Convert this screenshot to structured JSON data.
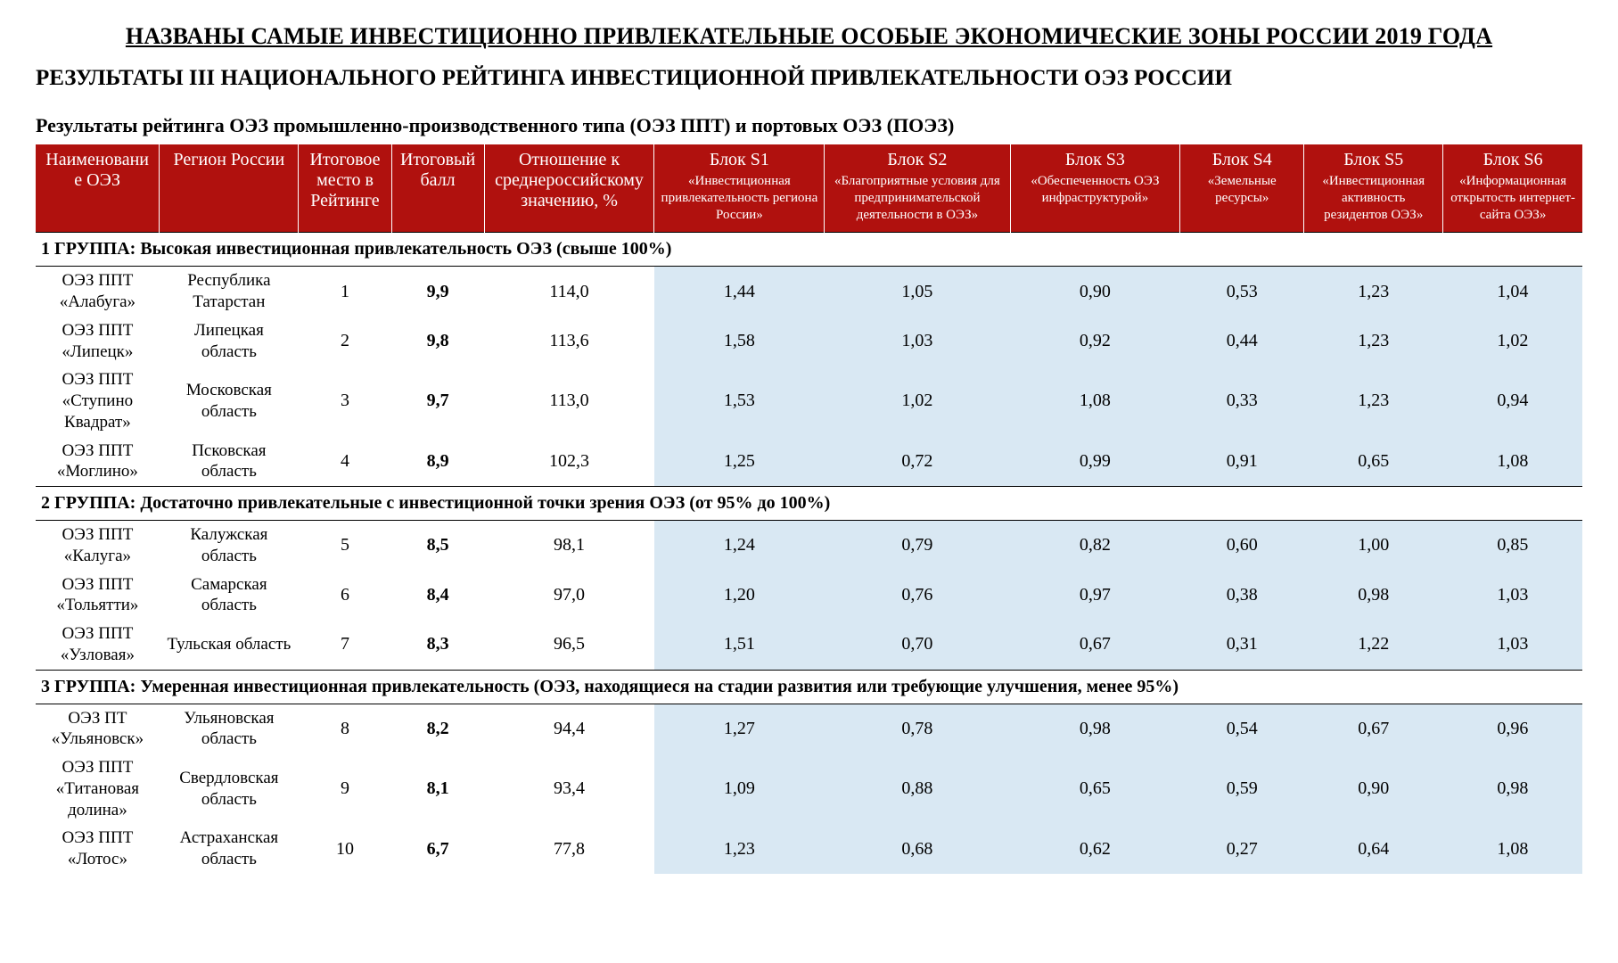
{
  "title_main": "НАЗВАНЫ САМЫЕ ИНВЕСТИЦИОННО ПРИВЛЕКАТЕЛЬНЫЕ ОСОБЫЕ ЭКОНОМИЧЕСКИЕ ЗОНЫ РОССИИ 2019 ГОДА",
  "title_sub": "РЕЗУЛЬТАТЫ III НАЦИОНАЛЬНОГО РЕЙТИНГА ИНВЕСТИЦИОННОЙ ПРИВЛЕКАТЕЛЬНОСТИ ОЭЗ РОССИИ",
  "table_caption": "Результаты рейтинга ОЭЗ промышленно-производственного типа (ОЭЗ ППТ) и портовых ОЭЗ (ПОЭЗ)",
  "columns": {
    "name": {
      "main": "Наименовани е ОЭЗ"
    },
    "region": {
      "main": "Регион России"
    },
    "rank": {
      "main": "Итоговое место в Рейтинге"
    },
    "score": {
      "main": "Итоговый балл"
    },
    "ratio": {
      "main": "Отношение к среднероссийскому значению, %"
    },
    "b1": {
      "main": "Блок S1",
      "sub": "«Инвестиционная привлекательность региона России»"
    },
    "b2": {
      "main": "Блок S2",
      "sub": "«Благоприятные условия для предпринимательской деятельности в ОЭЗ»"
    },
    "b3": {
      "main": "Блок S3",
      "sub": "«Обеспеченность ОЭЗ инфраструктурой»"
    },
    "b4": {
      "main": "Блок S4",
      "sub": "«Земельные ресурсы»"
    },
    "b5": {
      "main": "Блок S5",
      "sub": "«Инвестиционная активность резидентов ОЭЗ»"
    },
    "b6": {
      "main": "Блок S6",
      "sub": "«Информационная открытость интернет-сайта ОЭЗ»"
    }
  },
  "groups": [
    {
      "label": "1 ГРУППА:  Высокая инвестиционная привлекательность ОЭЗ (свыше 100%)",
      "rows": [
        {
          "name": "ОЭЗ ППТ «Алабуга»",
          "region": "Республика Татарстан",
          "rank": "1",
          "score": "9,9",
          "ratio": "114,0",
          "b1": "1,44",
          "b2": "1,05",
          "b3": "0,90",
          "b4": "0,53",
          "b5": "1,23",
          "b6": "1,04"
        },
        {
          "name": "ОЭЗ ППТ «Липецк»",
          "region": "Липецкая область",
          "rank": "2",
          "score": "9,8",
          "ratio": "113,6",
          "b1": "1,58",
          "b2": "1,03",
          "b3": "0,92",
          "b4": "0,44",
          "b5": "1,23",
          "b6": "1,02"
        },
        {
          "name": "ОЭЗ ППТ «Ступино Квадрат»",
          "region": "Московская область",
          "rank": "3",
          "score": "9,7",
          "ratio": "113,0",
          "b1": "1,53",
          "b2": "1,02",
          "b3": "1,08",
          "b4": "0,33",
          "b5": "1,23",
          "b6": "0,94"
        },
        {
          "name": "ОЭЗ ППТ «Моглино»",
          "region": "Псковская область",
          "rank": "4",
          "score": "8,9",
          "ratio": "102,3",
          "b1": "1,25",
          "b2": "0,72",
          "b3": "0,99",
          "b4": "0,91",
          "b5": "0,65",
          "b6": "1,08"
        }
      ]
    },
    {
      "label": "2 ГРУППА:  Достаточно привлекательные с инвестиционной точки зрения ОЭЗ (от 95% до 100%)",
      "rows": [
        {
          "name": "ОЭЗ ППТ «Калуга»",
          "region": "Калужская область",
          "rank": "5",
          "score": "8,5",
          "ratio": "98,1",
          "b1": "1,24",
          "b2": "0,79",
          "b3": "0,82",
          "b4": "0,60",
          "b5": "1,00",
          "b6": "0,85"
        },
        {
          "name": "ОЭЗ ППТ «Тольятти»",
          "region": "Самарская область",
          "rank": "6",
          "score": "8,4",
          "ratio": "97,0",
          "b1": "1,20",
          "b2": "0,76",
          "b3": "0,97",
          "b4": "0,38",
          "b5": "0,98",
          "b6": "1,03"
        },
        {
          "name": "ОЭЗ ППТ «Узловая»",
          "region": "Тульская область",
          "rank": "7",
          "score": "8,3",
          "ratio": "96,5",
          "b1": "1,51",
          "b2": "0,70",
          "b3": "0,67",
          "b4": "0,31",
          "b5": "1,22",
          "b6": "1,03"
        }
      ]
    },
    {
      "label": "3 ГРУППА:  Умеренная инвестиционная привлекательность (ОЭЗ, находящиеся на стадии развития или требующие улучшения, менее 95%)",
      "rows": [
        {
          "name": "ОЭЗ ПТ «Ульяновск»",
          "region": "Ульяновская область",
          "rank": "8",
          "score": "8,2",
          "ratio": "94,4",
          "b1": "1,27",
          "b2": "0,78",
          "b3": "0,98",
          "b4": "0,54",
          "b5": "0,67",
          "b6": "0,96"
        },
        {
          "name": "ОЭЗ ППТ «Титановая долина»",
          "region": "Свердловская область",
          "rank": "9",
          "score": "8,1",
          "ratio": "93,4",
          "b1": "1,09",
          "b2": "0,88",
          "b3": "0,65",
          "b4": "0,59",
          "b5": "0,90",
          "b6": "0,98"
        },
        {
          "name": "ОЭЗ ППТ «Лотос»",
          "region": "Астраханская область",
          "rank": "10",
          "score": "6,7",
          "ratio": "77,8",
          "b1": "1,23",
          "b2": "0,68",
          "b3": "0,62",
          "b4": "0,27",
          "b5": "0,64",
          "b6": "1,08"
        }
      ]
    }
  ],
  "style": {
    "header_bg": "#b0110e",
    "header_fg": "#ffffff",
    "block_bg": "#d9e8f3",
    "page_bg": "#ffffff",
    "text_color": "#000000"
  }
}
